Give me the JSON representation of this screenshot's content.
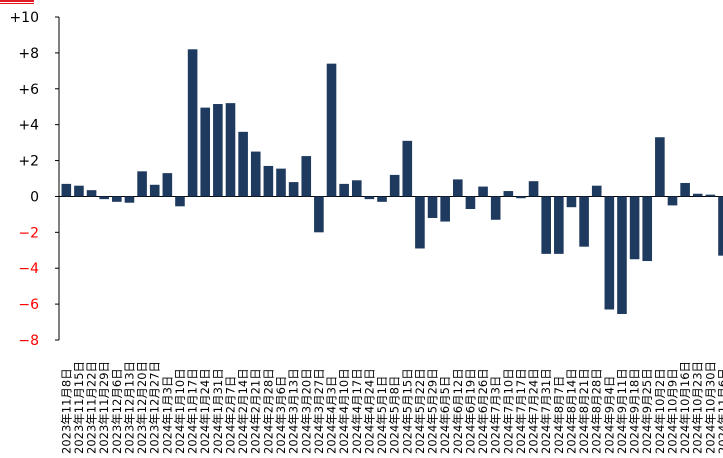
{
  "chart_data": {
    "type": "bar",
    "title": "",
    "xlabel": "",
    "ylabel": "",
    "ylim": [
      -8,
      10
    ],
    "yticks": [
      {
        "value": 10,
        "label": "+10"
      },
      {
        "value": 8,
        "label": "+8"
      },
      {
        "value": 6,
        "label": "+6"
      },
      {
        "value": 4,
        "label": "+4"
      },
      {
        "value": 2,
        "label": "+2"
      },
      {
        "value": 0,
        "label": "0"
      },
      {
        "value": -2,
        "label": "−2"
      },
      {
        "value": -4,
        "label": "−4"
      },
      {
        "value": -6,
        "label": "−6"
      },
      {
        "value": -8,
        "label": "−8"
      }
    ],
    "positive_tick_color": "#000000",
    "negative_tick_color": "#ff0000",
    "bar_color": "#1f3a5f",
    "categories": [
      "2023年11月8日",
      "2023年11月15日",
      "2023年11月22日",
      "2023年11月29日",
      "2023年12月6日",
      "2023年12月13日",
      "2023年12月20日",
      "2023年12月27日",
      "2024年1月3日",
      "2024年1月10日",
      "2024年1月17日",
      "2024年1月24日",
      "2024年1月31日",
      "2024年2月7日",
      "2024年2月14日",
      "2024年2月21日",
      "2024年2月28日",
      "2024年3月6日",
      "2024年3月13日",
      "2024年3月20日",
      "2024年3月27日",
      "2024年4月3日",
      "2024年4月10日",
      "2024年4月17日",
      "2024年4月24日",
      "2024年5月1日",
      "2024年5月8日",
      "2024年5月15日",
      "2024年5月22日",
      "2024年5月29日",
      "2024年6月5日",
      "2024年6月12日",
      "2024年6月19日",
      "2024年6月26日",
      "2024年7月3日",
      "2024年7月10日",
      "2024年7月17日",
      "2024年7月24日",
      "2024年7月31日",
      "2024年8月7日",
      "2024年8月14日",
      "2024年8月21日",
      "2024年8月28日",
      "2024年9月4日",
      "2024年9月11日",
      "2024年9月18日",
      "2024年9月25日",
      "2024年10月2日",
      "2024年10月9日",
      "2024年10月16日",
      "2024年10月23日",
      "2024年10月30日",
      "2024年11月6日"
    ],
    "values": [
      0.7,
      0.6,
      0.35,
      -0.15,
      -0.3,
      -0.35,
      1.4,
      0.65,
      1.3,
      -0.55,
      8.2,
      4.95,
      5.15,
      5.2,
      3.6,
      2.5,
      1.7,
      1.55,
      0.8,
      2.25,
      -2.0,
      7.4,
      0.7,
      0.9,
      -0.15,
      -0.3,
      1.2,
      3.1,
      -2.9,
      -1.2,
      -1.4,
      0.95,
      -0.7,
      0.55,
      -1.3,
      0.3,
      -0.1,
      0.85,
      -3.2,
      -3.2,
      -0.6,
      -2.8,
      0.6,
      -6.3,
      -6.55,
      -3.5,
      -3.6,
      3.3,
      -0.5,
      0.75,
      0.15,
      0.1,
      -3.3
    ]
  }
}
